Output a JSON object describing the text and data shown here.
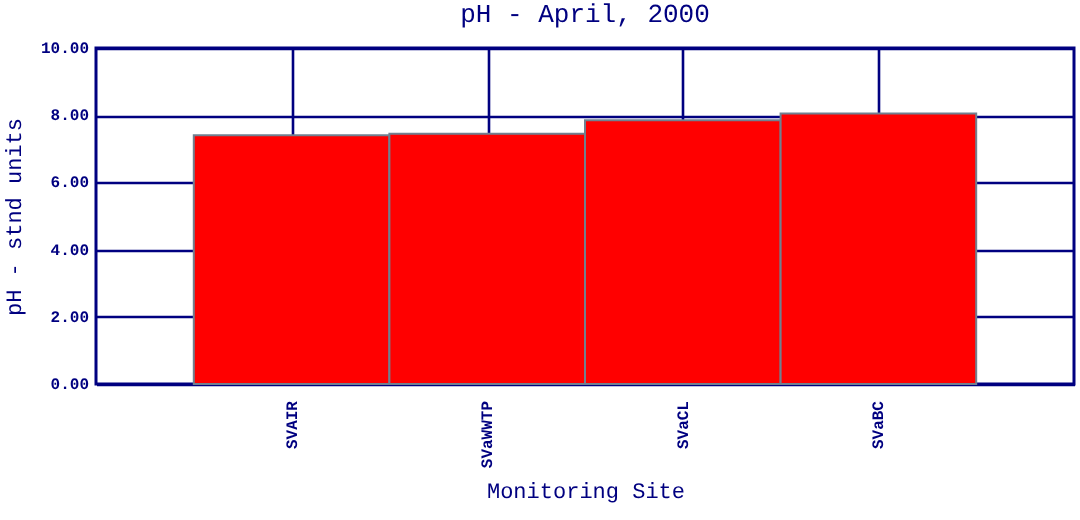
{
  "chart_data": {
    "type": "bar",
    "title": "pH - April, 2000",
    "xlabel": "Monitoring Site",
    "ylabel": "pH - stnd units",
    "categories": [
      "SVAIR",
      "SVaWWTP",
      "SVaCL",
      "SVaBC"
    ],
    "values": [
      7.4,
      7.45,
      7.85,
      8.05
    ],
    "color": "#ff0000",
    "ylim": [
      0,
      10
    ],
    "yticks": [
      {
        "value": 0,
        "label": "0.00"
      },
      {
        "value": 2,
        "label": "2.00"
      },
      {
        "value": 4,
        "label": "4.00"
      },
      {
        "value": 6,
        "label": "6.00"
      },
      {
        "value": 8,
        "label": "8.00"
      },
      {
        "value": 10,
        "label": "10.00"
      }
    ],
    "grid": true
  }
}
